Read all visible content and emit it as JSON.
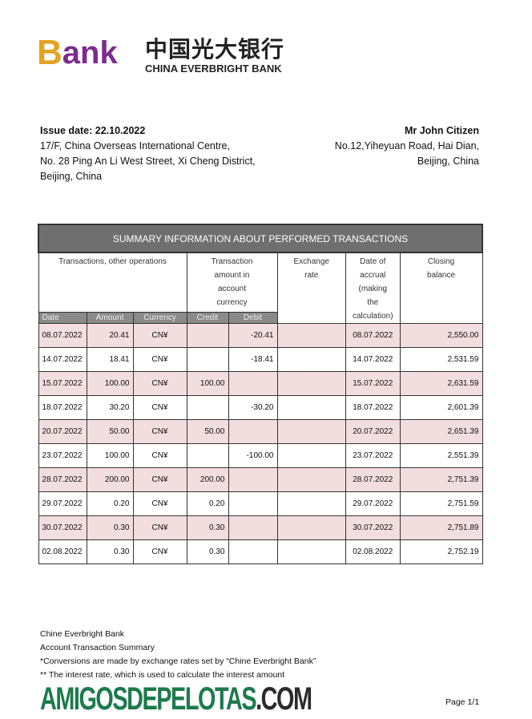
{
  "logo": {
    "b": "B",
    "ank": "ank",
    "chinese": "中国光大银行",
    "english": "CHINA EVERBRIGHT BANK",
    "colors": {
      "b": "#e3a224",
      "ank": "#7b2d8e"
    }
  },
  "issuer": {
    "issue_date": "Issue date: 22.10.2022",
    "lines": [
      "17/F, China Overseas International Centre,",
      "No. 28 Ping An Li West Street, Xi Cheng District,",
      "Beijing, China"
    ]
  },
  "recipient": {
    "name": "Mr John Citizen",
    "lines": [
      "No.12,Yiheyuan Road, Hai Dian,",
      "Beijing, China"
    ]
  },
  "table": {
    "title": "SUMMARY INFORMATION ABOUT PERFORMED TRANSACTIONS",
    "group_headers": [
      "Transactions, other operations",
      "Transaction amount in account currency",
      "Exchange rate",
      "Date of accrual (making the calculation)",
      "Closing balance"
    ],
    "sub_headers": [
      "Date",
      "Amount",
      "Currency",
      "Credit",
      "Debit"
    ],
    "rows": [
      {
        "date": "08.07.2022",
        "amount": "20.41",
        "currency": "CN¥",
        "credit": "",
        "debit": "-20.41",
        "rate": "",
        "accrual": "08.07.2022",
        "balance": "2,550.00"
      },
      {
        "date": "14.07.2022",
        "amount": "18.41",
        "currency": "CN¥",
        "credit": "",
        "debit": "-18.41",
        "rate": "",
        "accrual": "14.07.2022",
        "balance": "2,531.59"
      },
      {
        "date": "15.07.2022",
        "amount": "100.00",
        "currency": "CN¥",
        "credit": "100.00",
        "debit": "",
        "rate": "",
        "accrual": "15.07.2022",
        "balance": "2,631.59"
      },
      {
        "date": "18.07.2022",
        "amount": "30.20",
        "currency": "CN¥",
        "credit": "",
        "debit": "-30.20",
        "rate": "",
        "accrual": "18.07.2022",
        "balance": "2,601.39"
      },
      {
        "date": "20.07.2022",
        "amount": "50.00",
        "currency": "CN¥",
        "credit": "50.00",
        "debit": "",
        "rate": "",
        "accrual": "20.07.2022",
        "balance": "2,651.39"
      },
      {
        "date": "23.07.2022",
        "amount": "100.00",
        "currency": "CN¥",
        "credit": "",
        "debit": "-100.00",
        "rate": "",
        "accrual": "23.07.2022",
        "balance": "2,551.39"
      },
      {
        "date": "28.07.2022",
        "amount": "200.00",
        "currency": "CN¥",
        "credit": "200.00",
        "debit": "",
        "rate": "",
        "accrual": "28.07.2022",
        "balance": "2,751.39"
      },
      {
        "date": "29.07.2022",
        "amount": "0.20",
        "currency": "CN¥",
        "credit": "0.20",
        "debit": "",
        "rate": "",
        "accrual": "29.07.2022",
        "balance": "2,751.59"
      },
      {
        "date": "30.07.2022",
        "amount": "0.30",
        "currency": "CN¥",
        "credit": "0.30",
        "debit": "",
        "rate": "",
        "accrual": "30.07.2022",
        "balance": "2,751.89"
      },
      {
        "date": "02.08.2022",
        "amount": "0.30",
        "currency": "CN¥",
        "credit": "0.30",
        "debit": "",
        "rate": "",
        "accrual": "02.08.2022",
        "balance": "2,752.19"
      }
    ]
  },
  "footer": {
    "lines": [
      "Chine Everbright Bank",
      "Account Transaction Summary",
      "*Conversions are made by exchange rates set by “Chine Everbright Bank”",
      "** The interest rate, which is used to calculate the interest amount"
    ],
    "page": "Page 1/1"
  },
  "watermark": {
    "main": "AMIGOSDEPELOTAS",
    "suffix": ".COM"
  }
}
